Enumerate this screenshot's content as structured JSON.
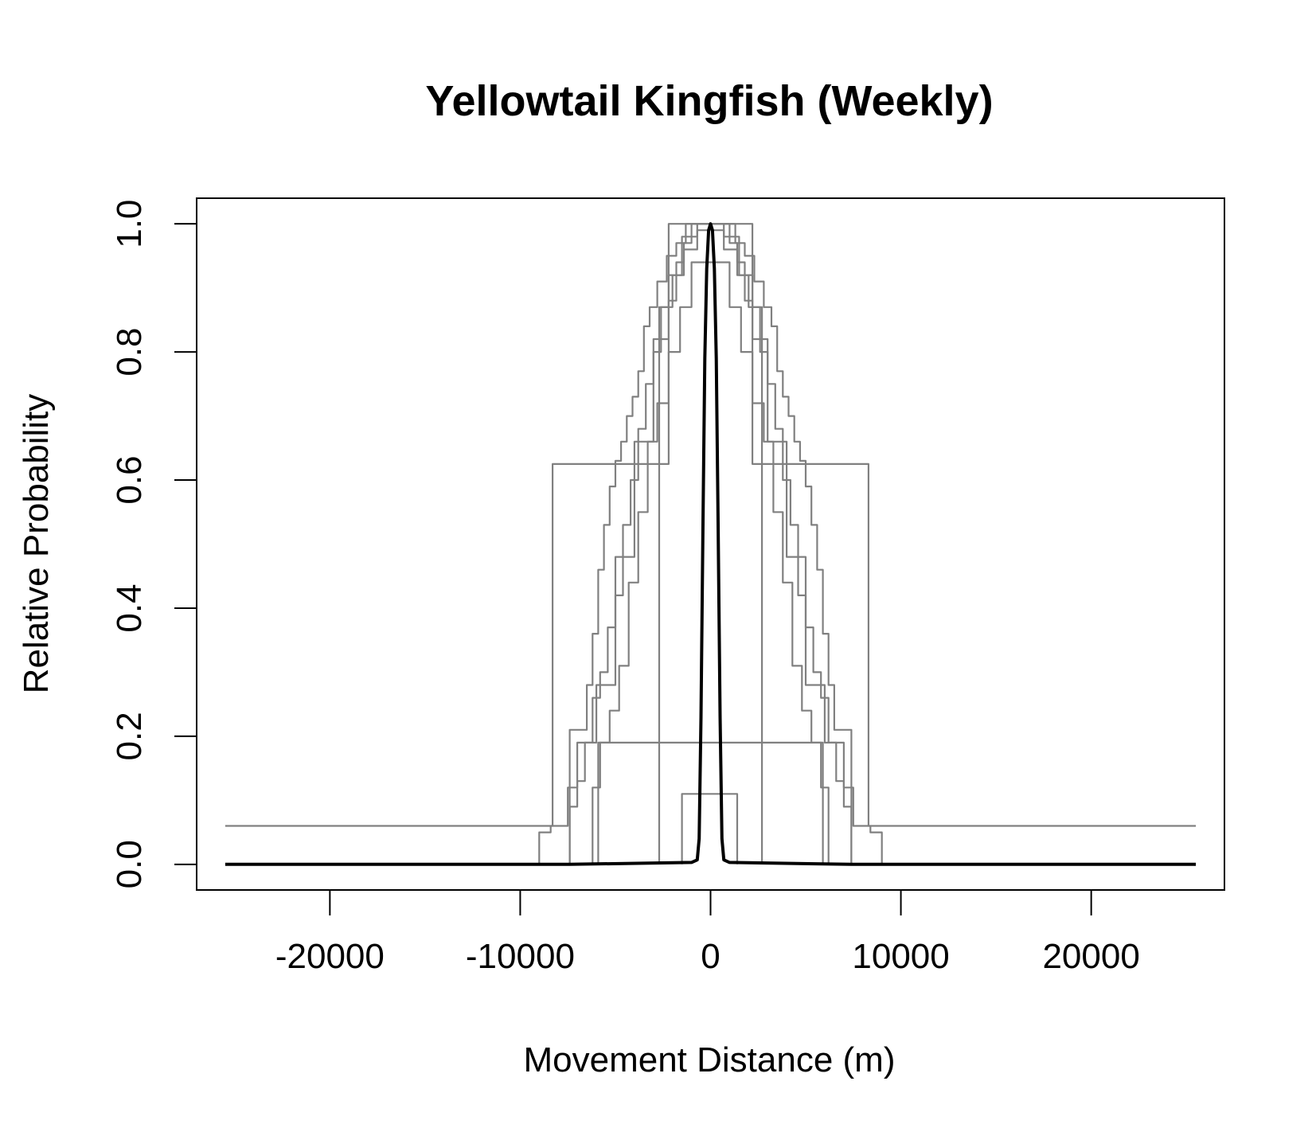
{
  "chart_data": {
    "type": "line",
    "title": "Yellowtail Kingfish (Weekly)",
    "xlabel": "Movement Distance (m)",
    "ylabel": "Relative Probability",
    "xlim": [
      -27000,
      27000
    ],
    "ylim": [
      -0.04,
      1.04
    ],
    "xticks": [
      -20000,
      -10000,
      0,
      10000,
      20000
    ],
    "xtick_labels": [
      "-20000",
      "-10000",
      "0",
      "10000",
      "20000"
    ],
    "yticks": [
      0.0,
      0.2,
      0.4,
      0.6,
      0.8,
      1.0
    ],
    "ytick_labels": [
      "0.0",
      "0.2",
      "0.4",
      "0.6",
      "0.8",
      "1.0"
    ],
    "grid": false,
    "legend": "none",
    "colors": {
      "individual": "#808080",
      "mean": "#000000"
    },
    "series": [
      {
        "role": "individual",
        "color": "#808080",
        "step": true,
        "x": [
          -25500,
          -8300,
          -8300,
          -2200,
          -2200,
          2200,
          2200,
          8300,
          8300,
          25500
        ],
        "y": [
          0.06,
          0.06,
          0.625,
          0.625,
          1.0,
          1.0,
          0.625,
          0.625,
          0.06,
          0.06
        ]
      },
      {
        "role": "individual",
        "color": "#808080",
        "step": true,
        "x": [
          -9000,
          -9000,
          -8400,
          -8400,
          -7500,
          -7500,
          -7400,
          -7400,
          -7100,
          -7100,
          -6500,
          -6500,
          -6200,
          -6200,
          -5900,
          -5900,
          -5600,
          -5600,
          -5300,
          -5300,
          -5000,
          -5000,
          -4700,
          -4700,
          -4400,
          -4400,
          -4100,
          -4100,
          -3800,
          -3800,
          -3500,
          -3500,
          -3200,
          -3200,
          -2800,
          -2800,
          -2300,
          -2300,
          -1800,
          -1800,
          -1300,
          -1300,
          1300,
          1300,
          1800,
          1800,
          2300,
          2300,
          2800,
          2800,
          3200,
          3200,
          3500,
          3500,
          3800,
          3800,
          4100,
          4100,
          4400,
          4400,
          4700,
          4700,
          5000,
          5000,
          5300,
          5300,
          5600,
          5600,
          5900,
          5900,
          6200,
          6200,
          6500,
          6500,
          7100,
          7100,
          7400,
          7400,
          7500,
          7500,
          8400,
          8400,
          9000,
          9000
        ],
        "y": [
          0.0,
          0.05,
          0.05,
          0.06,
          0.06,
          0.12,
          0.12,
          0.21,
          0.21,
          0.21,
          0.21,
          0.28,
          0.28,
          0.36,
          0.36,
          0.46,
          0.46,
          0.53,
          0.53,
          0.59,
          0.59,
          0.63,
          0.63,
          0.66,
          0.66,
          0.7,
          0.7,
          0.73,
          0.73,
          0.77,
          0.77,
          0.84,
          0.84,
          0.87,
          0.87,
          0.91,
          0.91,
          0.95,
          0.95,
          0.97,
          0.97,
          1.0,
          1.0,
          0.97,
          0.97,
          0.95,
          0.95,
          0.91,
          0.91,
          0.87,
          0.87,
          0.84,
          0.84,
          0.77,
          0.77,
          0.73,
          0.73,
          0.7,
          0.7,
          0.66,
          0.66,
          0.63,
          0.63,
          0.59,
          0.59,
          0.53,
          0.53,
          0.46,
          0.46,
          0.36,
          0.36,
          0.28,
          0.28,
          0.21,
          0.21,
          0.21,
          0.21,
          0.12,
          0.12,
          0.06,
          0.06,
          0.05,
          0.05,
          0.0
        ]
      },
      {
        "role": "individual",
        "color": "#808080",
        "step": true,
        "x": [
          -7400,
          -7400,
          -7000,
          -7000,
          -6600,
          -6600,
          -6200,
          -6200,
          -5800,
          -5800,
          -5400,
          -5400,
          -5000,
          -5000,
          -4600,
          -4600,
          -4200,
          -4200,
          -3800,
          -3800,
          -3400,
          -3400,
          -3000,
          -3000,
          -2600,
          -2600,
          -2200,
          -2200,
          -1800,
          -1800,
          -1400,
          -1400,
          -1000,
          -1000,
          1000,
          1000,
          1400,
          1400,
          1800,
          1800,
          2200,
          2200,
          2600,
          2600,
          3000,
          3000,
          3400,
          3400,
          3800,
          3800,
          4200,
          4200,
          4600,
          4600,
          5000,
          5000,
          5400,
          5400,
          5800,
          5800,
          6200,
          6200,
          6600,
          6600,
          7000,
          7000,
          7400,
          7400
        ],
        "y": [
          0.0,
          0.09,
          0.09,
          0.13,
          0.13,
          0.19,
          0.19,
          0.26,
          0.26,
          0.3,
          0.3,
          0.37,
          0.37,
          0.42,
          0.42,
          0.53,
          0.53,
          0.6,
          0.6,
          0.68,
          0.68,
          0.75,
          0.75,
          0.8,
          0.8,
          0.87,
          0.87,
          0.88,
          0.88,
          0.94,
          0.94,
          0.97,
          0.97,
          1.0,
          1.0,
          0.97,
          0.97,
          0.94,
          0.94,
          0.88,
          0.88,
          0.87,
          0.87,
          0.8,
          0.8,
          0.75,
          0.75,
          0.68,
          0.68,
          0.6,
          0.6,
          0.53,
          0.53,
          0.42,
          0.42,
          0.37,
          0.37,
          0.3,
          0.3,
          0.26,
          0.26,
          0.19,
          0.19,
          0.13,
          0.13,
          0.09,
          0.09,
          0.0
        ]
      },
      {
        "role": "individual",
        "color": "#808080",
        "step": true,
        "x": [
          -6200,
          -6200,
          -5800,
          -5800,
          -5300,
          -5300,
          -4800,
          -4800,
          -4300,
          -4300,
          -3800,
          -3800,
          -3300,
          -3300,
          -2800,
          -2800,
          -2200,
          -2200,
          -1600,
          -1600,
          -1000,
          -1000,
          1000,
          1000,
          1600,
          1600,
          2200,
          2200,
          2800,
          2800,
          3300,
          3300,
          3800,
          3800,
          4300,
          4300,
          4800,
          4800,
          5300,
          5300,
          5800,
          5800,
          6200,
          6200
        ],
        "y": [
          0.0,
          0.12,
          0.12,
          0.19,
          0.19,
          0.24,
          0.24,
          0.31,
          0.31,
          0.44,
          0.44,
          0.55,
          0.55,
          0.66,
          0.66,
          0.72,
          0.72,
          0.8,
          0.8,
          0.87,
          0.87,
          0.94,
          0.94,
          0.87,
          0.87,
          0.8,
          0.8,
          0.72,
          0.72,
          0.66,
          0.66,
          0.55,
          0.55,
          0.44,
          0.44,
          0.31,
          0.31,
          0.24,
          0.24,
          0.19,
          0.19,
          0.12,
          0.12,
          0.0
        ]
      },
      {
        "role": "individual",
        "color": "#808080",
        "step": true,
        "x": [
          -7400,
          -7400,
          -7000,
          -7000,
          -6000,
          -6000,
          -5000,
          -5000,
          -4000,
          -4000,
          -3000,
          -3000,
          -2200,
          -2200,
          -1500,
          -1500,
          -700,
          -700,
          700,
          700,
          1500,
          1500,
          2200,
          2200,
          3000,
          3000,
          4000,
          4000,
          5000,
          5000,
          6000,
          6000,
          7000,
          7000,
          7400,
          7400
        ],
        "y": [
          0.0,
          0.12,
          0.12,
          0.19,
          0.19,
          0.28,
          0.28,
          0.48,
          0.48,
          0.66,
          0.66,
          0.82,
          0.82,
          0.92,
          0.92,
          0.98,
          0.98,
          1.0,
          1.0,
          0.98,
          0.98,
          0.92,
          0.92,
          0.82,
          0.82,
          0.66,
          0.66,
          0.48,
          0.48,
          0.28,
          0.28,
          0.19,
          0.19,
          0.12,
          0.12,
          0.0
        ]
      },
      {
        "role": "individual",
        "color": "#808080",
        "step": true,
        "x": [
          -2700,
          -2700,
          -2000,
          -2000,
          -1400,
          -1400,
          -700,
          -700,
          700,
          700,
          1400,
          1400,
          2000,
          2000,
          2700,
          2700
        ],
        "y": [
          0.0,
          0.87,
          0.87,
          0.92,
          0.92,
          0.96,
          0.96,
          0.99,
          0.99,
          0.96,
          0.96,
          0.92,
          0.92,
          0.87,
          0.87,
          0.0
        ]
      },
      {
        "role": "individual",
        "color": "#808080",
        "step": true,
        "x": [
          -5900,
          -5900,
          5900,
          5900
        ],
        "y": [
          0.0,
          0.19,
          0.19,
          0.0
        ]
      },
      {
        "role": "individual",
        "color": "#808080",
        "step": true,
        "x": [
          -1500,
          -1500,
          1400,
          1400
        ],
        "y": [
          0.0,
          0.11,
          0.11,
          0.0
        ]
      },
      {
        "role": "mean",
        "color": "#000000",
        "step": false,
        "x": [
          -25500,
          -7400,
          -1000,
          -700,
          -600,
          -500,
          -400,
          -300,
          -200,
          -100,
          0,
          100,
          200,
          300,
          400,
          500,
          600,
          700,
          1000,
          7400,
          25500
        ],
        "y": [
          0.0,
          0.0,
          0.003,
          0.007,
          0.04,
          0.23,
          0.52,
          0.79,
          0.93,
          0.99,
          1.0,
          0.99,
          0.93,
          0.79,
          0.52,
          0.23,
          0.04,
          0.007,
          0.003,
          0.0,
          0.0
        ]
      }
    ]
  }
}
